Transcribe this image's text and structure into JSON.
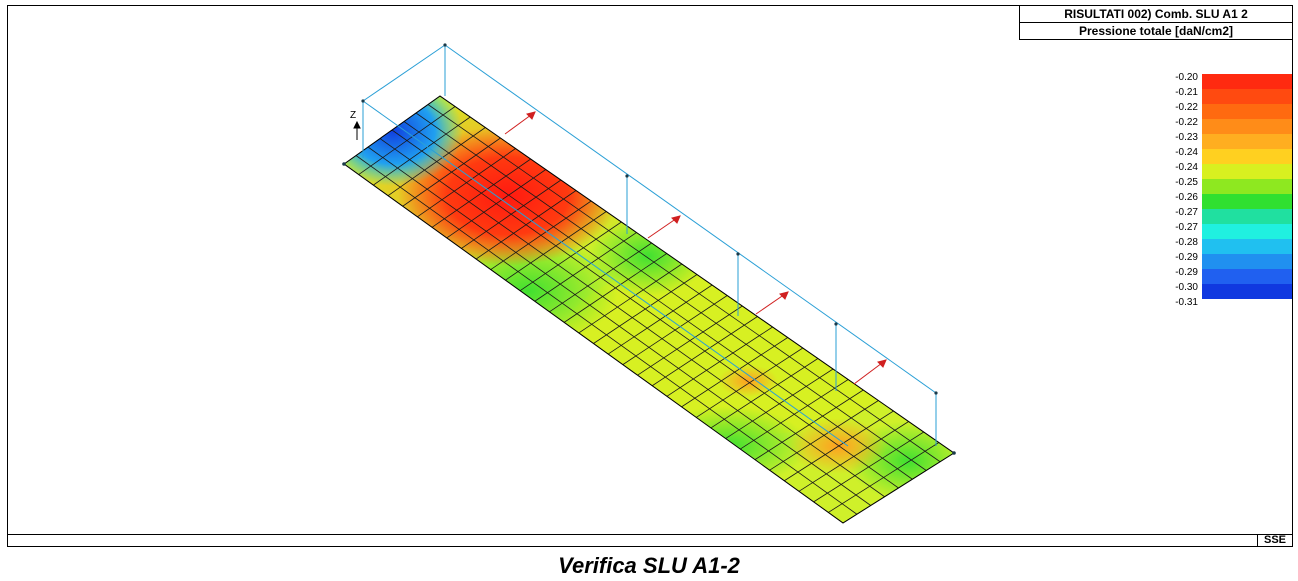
{
  "header": {
    "result_line": "RISULTATI   002) Comb. SLU A1 2",
    "quantity_line": "Pressione totale [daN/cm2]"
  },
  "legend": {
    "items": [
      {
        "label": "-0.20",
        "color": "#ff2a10"
      },
      {
        "label": "-0.21",
        "color": "#ff4a10"
      },
      {
        "label": "-0.22",
        "color": "#ff6a10"
      },
      {
        "label": "-0.22",
        "color": "#ff8c18"
      },
      {
        "label": "-0.23",
        "color": "#ffae20"
      },
      {
        "label": "-0.24",
        "color": "#ffd020"
      },
      {
        "label": "-0.24",
        "color": "#d8f020"
      },
      {
        "label": "-0.25",
        "color": "#8ee820"
      },
      {
        "label": "-0.26",
        "color": "#30e030"
      },
      {
        "label": "-0.27",
        "color": "#20e0a0"
      },
      {
        "label": "-0.27",
        "color": "#20f0e0"
      },
      {
        "label": "-0.28",
        "color": "#20c0f0"
      },
      {
        "label": "-0.29",
        "color": "#2090f0"
      },
      {
        "label": "-0.29",
        "color": "#2060f0"
      },
      {
        "label": "-0.30",
        "color": "#1038e0"
      }
    ],
    "last_label": "-0.31"
  },
  "axis": {
    "z_label": "Z"
  },
  "status": {
    "view": "SSE"
  },
  "caption": "Verifica SLU A1-2"
}
